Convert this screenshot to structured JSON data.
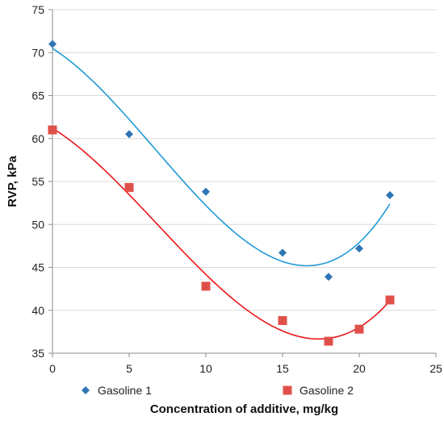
{
  "chart_data": {
    "type": "scatter",
    "title": "",
    "xlabel": "Concentration of additive, mg/kg",
    "ylabel": "RVP, kPa",
    "xlim": [
      0,
      25
    ],
    "ylim": [
      35,
      75
    ],
    "xticks": [
      0,
      5,
      10,
      15,
      20,
      25
    ],
    "yticks": [
      35,
      40,
      45,
      50,
      55,
      60,
      65,
      70,
      75
    ],
    "grid": "horizontal",
    "legend_position": "bottom",
    "series": [
      {
        "name": "Gasoline 1",
        "marker": "diamond",
        "color": "#2e75b6",
        "trend_color": "#1f9ad6",
        "x": [
          0,
          5,
          10,
          15,
          18,
          20,
          22
        ],
        "y": [
          71.0,
          60.5,
          53.8,
          46.7,
          43.9,
          47.2,
          53.4
        ]
      },
      {
        "name": "Gasoline 2",
        "marker": "square",
        "color": "#e0504a",
        "trend_color": "#e8171a",
        "x": [
          0,
          5,
          10,
          15,
          18,
          20,
          22
        ],
        "y": [
          61.0,
          54.3,
          42.8,
          38.8,
          36.4,
          37.8,
          41.2
        ]
      }
    ]
  }
}
